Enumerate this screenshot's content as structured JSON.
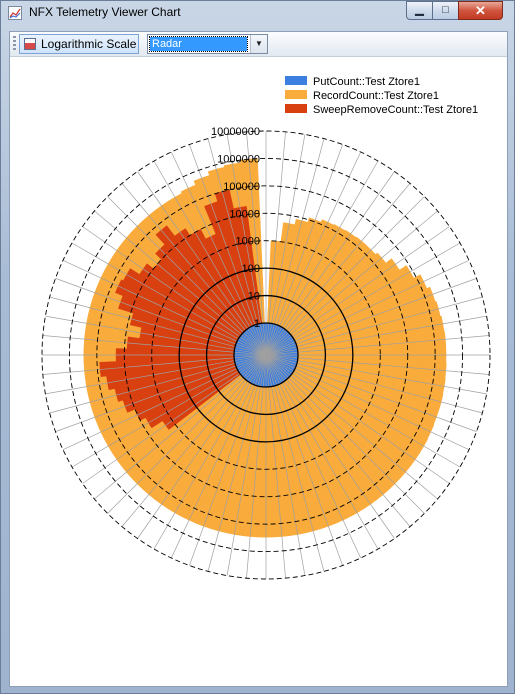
{
  "window": {
    "title": "NFX Telemetry Viewer Chart",
    "minimize_glyph": "▁",
    "maximize_glyph": "□",
    "close_glyph": "✕"
  },
  "toolbar": {
    "log_scale_label": "Logarithmic Scale",
    "chart_type_value": "Radar",
    "chart_type_arrow": "▼"
  },
  "colors": {
    "put": "#3d7fe0",
    "record": "#f9ab3b",
    "sweep": "#d94010"
  },
  "icons": {
    "app": "chart-icon",
    "log_scale": "chart-icon",
    "dropdown": "chevron-down-icon"
  },
  "chart_data": {
    "type": "radar",
    "scale": "log",
    "rlim": [
      1,
      10000000
    ],
    "tick_labels": [
      "1",
      "10",
      "100",
      "1000",
      "10000",
      "100000",
      "1000000",
      "10000000"
    ],
    "legend_position": "top-right",
    "series": [
      {
        "name": "PutCount::Test Ztore1",
        "color": "#3d7fe0",
        "values": [
          1,
          1,
          1,
          1,
          1,
          1,
          1,
          1,
          1,
          1,
          1,
          1,
          1,
          1,
          1,
          1,
          1,
          1,
          1,
          1,
          1,
          1,
          1,
          1,
          1,
          1,
          1,
          1,
          1,
          1,
          1,
          1,
          1,
          1,
          1,
          1,
          1,
          1,
          1,
          1,
          1,
          1,
          1,
          1,
          1,
          1,
          1,
          1,
          1,
          1,
          1,
          1,
          1,
          1,
          1,
          1,
          1,
          1,
          1,
          1,
          1,
          1,
          1,
          1,
          1,
          1,
          1,
          1,
          1,
          1,
          1,
          1
        ]
      },
      {
        "name": "RecordCount::Test Ztore1",
        "color": "#f9ab3b",
        "values": [
          1,
          1000,
          5000,
          8000,
          12000,
          15000,
          16000,
          17000,
          18000,
          18000,
          22000,
          40000,
          80000,
          150000,
          200000,
          220000,
          240000,
          250000,
          250000,
          260000,
          270000,
          280000,
          280000,
          290000,
          300000,
          300000,
          300000,
          300000,
          300000,
          300000,
          300000,
          300000,
          300000,
          300000,
          300000,
          300000,
          300000,
          300000,
          300000,
          300000,
          300000,
          300000,
          300000,
          300000,
          300000,
          300000,
          300000,
          300000,
          300000,
          300000,
          300000,
          300000,
          300000,
          300000,
          300000,
          300000,
          300000,
          300000,
          300000,
          300000,
          300000,
          300000,
          300000,
          300000,
          300000,
          300000,
          300000,
          350000,
          500000,
          700000,
          800000,
          1000000
        ]
      },
      {
        "name": "SweepRemoveCount::Test Ztore1",
        "color": "#d94010",
        "values": [
          1,
          1,
          1,
          1,
          1,
          1,
          1,
          1,
          1,
          1,
          1,
          1,
          1,
          1,
          1,
          1,
          1,
          1,
          1,
          1,
          1,
          1,
          1,
          1,
          1,
          1,
          1,
          1,
          1,
          1,
          1,
          1,
          1,
          1,
          1,
          1,
          1,
          1,
          1,
          1,
          1,
          1,
          1,
          1,
          1,
          1,
          1,
          2000,
          6000,
          10000,
          20000,
          30000,
          50000,
          80000,
          20000,
          8000,
          3000,
          8000,
          30000,
          60000,
          50000,
          20000,
          10000,
          20000,
          60000,
          20000,
          10000,
          4000,
          50000,
          100000,
          20000,
          1
        ]
      }
    ]
  }
}
